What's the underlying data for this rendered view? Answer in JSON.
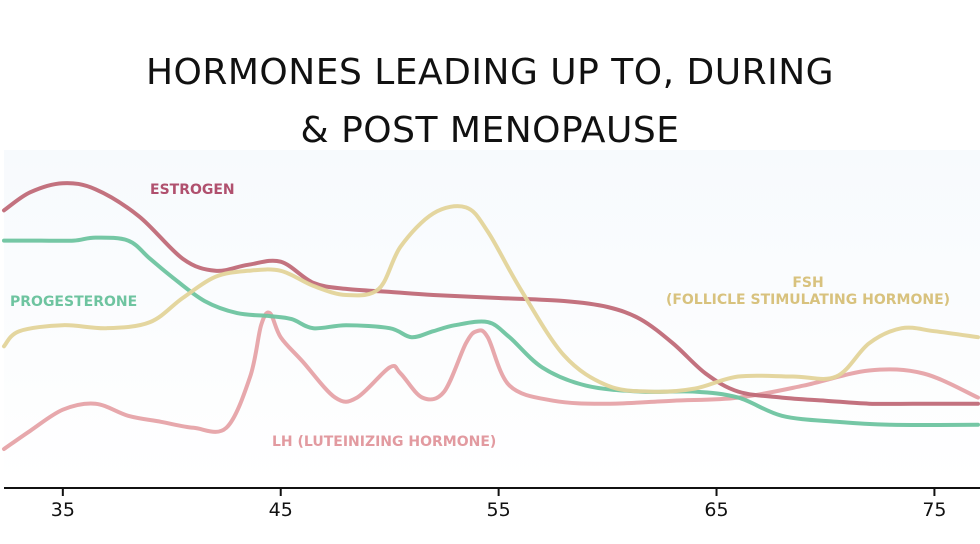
{
  "title_line1": "HORMONES LEADING UP TO, DURING",
  "title_line2": "& POST MENOPAUSE",
  "chart_data": {
    "type": "line",
    "title": "HORMONES LEADING UP TO, DURING & POST MENOPAUSE",
    "xlabel": "",
    "ylabel": "",
    "xlim": [
      32.3,
      77.0
    ],
    "ylim": [
      0,
      100
    ],
    "x_ticks": [
      35,
      45,
      55,
      65,
      75
    ],
    "grid": false,
    "legend": "inline labels",
    "series": [
      {
        "name": "ESTROGEN",
        "color": "#c06a78",
        "x": [
          32.3,
          33.5,
          35.0,
          36.5,
          38.5,
          40.5,
          42.0,
          43.5,
          45.0,
          46.5,
          48.0,
          50.0,
          52.0,
          55.0,
          58.0,
          60.0,
          61.5,
          63.0,
          64.5,
          66.0,
          68.0,
          70.0,
          72.0,
          74.0,
          77.0
        ],
        "y": [
          80,
          86,
          89,
          87,
          78,
          64,
          60,
          62,
          63,
          56,
          54,
          53,
          52,
          51,
          50,
          48,
          44,
          36,
          26,
          20,
          18,
          17,
          16,
          16,
          16
        ]
      },
      {
        "name": "PROGESTERONE",
        "color": "#6ec4a0",
        "x": [
          32.3,
          34.0,
          35.5,
          36.5,
          38.0,
          39.0,
          40.0,
          41.5,
          43.0,
          44.5,
          45.5,
          46.5,
          48.0,
          50.0,
          51.0,
          52.0,
          53.0,
          54.5,
          55.5,
          57.0,
          59.0,
          61.5,
          64.0,
          66.0,
          68.0,
          70.5,
          73.0,
          77.0
        ],
        "y": [
          70,
          70,
          70,
          71,
          70,
          64,
          58,
          50,
          46,
          45,
          44,
          41,
          42,
          41,
          38,
          40,
          42,
          43,
          38,
          28,
          22,
          20,
          20,
          18,
          12,
          10,
          9,
          9
        ]
      },
      {
        "name": "FSH (FOLLICLE STIMULATING HORMONE)",
        "color": "#e3d49a",
        "x": [
          32.3,
          33.0,
          35.0,
          37.0,
          39.0,
          40.5,
          42.0,
          43.5,
          45.0,
          46.5,
          48.0,
          49.5,
          50.5,
          52.0,
          53.5,
          54.5,
          56.0,
          58.0,
          60.0,
          62.0,
          64.0,
          66.0,
          68.5,
          70.5,
          72.0,
          73.5,
          75.0,
          77.0
        ],
        "y": [
          35,
          40,
          42,
          41,
          43,
          51,
          58,
          60,
          60,
          55,
          52,
          54,
          68,
          79,
          81,
          73,
          54,
          32,
          22,
          20,
          21,
          25,
          25,
          25,
          36,
          41,
          40,
          38
        ]
      },
      {
        "name": "LH (LUTEINIZING HORMONE)",
        "color": "#e6a3a8",
        "x": [
          32.3,
          33.5,
          35.0,
          36.5,
          38.0,
          39.5,
          41.0,
          42.5,
          43.6,
          44.1,
          44.5,
          45.0,
          46.0,
          47.5,
          48.5,
          50.0,
          50.5,
          51.5,
          52.5,
          53.5,
          54.0,
          54.5,
          55.5,
          57.5,
          60.0,
          63.0,
          66.0,
          69.0,
          72.0,
          74.5,
          77.0
        ],
        "y": [
          1,
          7,
          14,
          16,
          12,
          10,
          8,
          8,
          25,
          42,
          46,
          38,
          30,
          18,
          18,
          28,
          26,
          18,
          20,
          36,
          40,
          38,
          22,
          17,
          16,
          17,
          18,
          22,
          27,
          26,
          18
        ]
      }
    ],
    "annotations": [
      {
        "text": "ESTROGEN",
        "series": "ESTROGEN"
      },
      {
        "text": "PROGESTERONE",
        "series": "PROGESTERONE"
      },
      {
        "text": "FSH",
        "series": "FSH (FOLLICLE STIMULATING HORMONE)"
      },
      {
        "text": "(FOLLICLE STIMULATING HORMONE)",
        "series": "FSH (FOLLICLE STIMULATING HORMONE)"
      },
      {
        "text": "LH (LUTEINIZING HORMONE)",
        "series": "LH (LUTEINIZING HORMONE)"
      }
    ]
  }
}
